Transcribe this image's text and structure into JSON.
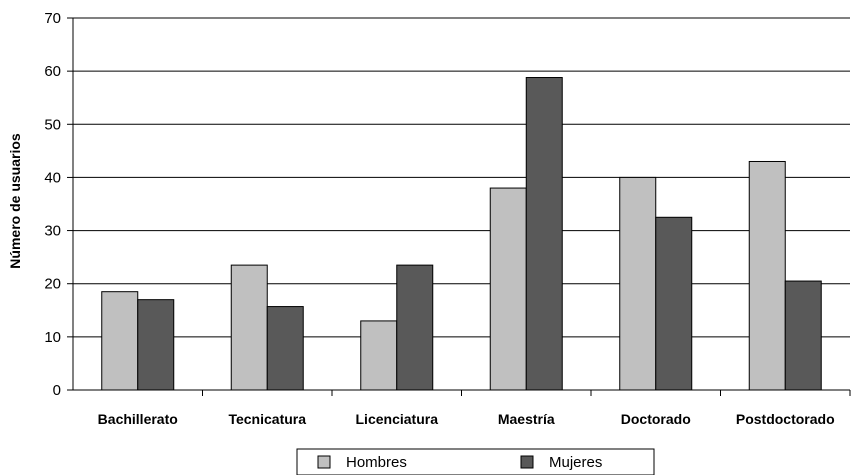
{
  "chart_data": {
    "type": "bar",
    "title": "",
    "xlabel": "",
    "ylabel": "Número de usuarios",
    "ylim": [
      0,
      70
    ],
    "yticks": [
      0,
      10,
      20,
      30,
      40,
      50,
      60,
      70
    ],
    "grid": true,
    "legend_position": "bottom",
    "categories": [
      "Bachillerato",
      "Tecnicatura",
      "Licenciatura",
      "Maestría",
      "Doctorado",
      "Postdoctorado"
    ],
    "series": [
      {
        "name": "Hombres",
        "color": "#c0c0c0",
        "values": [
          18.5,
          23.5,
          13,
          38,
          40,
          43
        ]
      },
      {
        "name": "Mujeres",
        "color": "#595959",
        "values": [
          17,
          15.7,
          23.5,
          58.8,
          32.5,
          20.5
        ]
      }
    ]
  }
}
